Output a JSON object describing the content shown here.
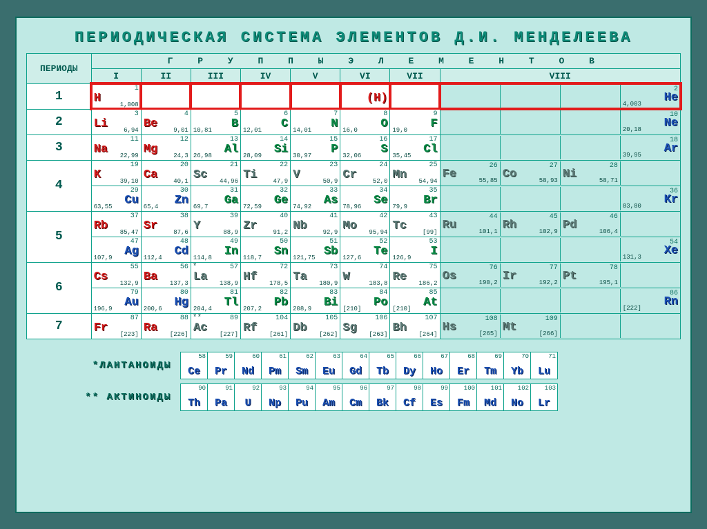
{
  "title": "ПЕРИОДИЧЕСКАЯ СИСТЕМА ЭЛЕМЕНТОВ Д.И. МЕНДЕЛЕЕВА",
  "labels": {
    "periods": "ПЕРИОДЫ",
    "groups": "Г Р У П П Ы    Э Л Е М Е Н Т О В",
    "lanth": "*ЛАНТАНОИДЫ",
    "act": "** АКТИНОИДЫ"
  },
  "group_headers": [
    "I",
    "II",
    "III",
    "IV",
    "V",
    "VI",
    "VII",
    "VIII"
  ],
  "colors": {
    "bg_outer": "#3a6e6e",
    "bg_card": "#bfe9e4",
    "border": "#0fa28c",
    "highlight": "#e21b1b",
    "red": "#d21b1b",
    "green": "#0a8a46",
    "blue": "#1a4fb3",
    "gray": "#5b7a76"
  },
  "highlight_period": 1,
  "periods": [
    {
      "n": "1",
      "rows": [
        {
          "cells": [
            {
              "sym": "H",
              "num": "1",
              "mass": "1,008",
              "color": "red",
              "side": "left"
            },
            null,
            null,
            null,
            null,
            {
              "sym": "(H)",
              "num": "",
              "mass": "",
              "color": "red",
              "side": "right"
            },
            null
          ],
          "g8": [
            null,
            null,
            null,
            {
              "sym": "He",
              "num": "2",
              "mass": "4,003",
              "color": "blue",
              "side": "right"
            }
          ],
          "hl": true
        }
      ]
    },
    {
      "n": "2",
      "rows": [
        {
          "cells": [
            {
              "sym": "Li",
              "num": "3",
              "mass": "6,94",
              "color": "red",
              "side": "left"
            },
            {
              "sym": "Be",
              "num": "4",
              "mass": "9,01",
              "color": "red",
              "side": "left"
            },
            {
              "sym": "B",
              "num": "5",
              "mass": "10,81",
              "color": "green",
              "side": "right"
            },
            {
              "sym": "C",
              "num": "6",
              "mass": "12,01",
              "color": "green",
              "side": "right"
            },
            {
              "sym": "N",
              "num": "7",
              "mass": "14,01",
              "color": "green",
              "side": "right"
            },
            {
              "sym": "O",
              "num": "8",
              "mass": "16,0",
              "color": "green",
              "side": "right"
            },
            {
              "sym": "F",
              "num": "9",
              "mass": "19,0",
              "color": "green",
              "side": "right"
            }
          ],
          "g8": [
            null,
            null,
            null,
            {
              "sym": "Ne",
              "num": "10",
              "mass": "20,18",
              "color": "blue",
              "side": "right"
            }
          ]
        }
      ]
    },
    {
      "n": "3",
      "rows": [
        {
          "cells": [
            {
              "sym": "Na",
              "num": "11",
              "mass": "22,99",
              "color": "red",
              "side": "left"
            },
            {
              "sym": "Mg",
              "num": "12",
              "mass": "24,3",
              "color": "red",
              "side": "left"
            },
            {
              "sym": "Al",
              "num": "13",
              "mass": "26,98",
              "color": "green",
              "side": "right"
            },
            {
              "sym": "Si",
              "num": "14",
              "mass": "28,09",
              "color": "green",
              "side": "right"
            },
            {
              "sym": "P",
              "num": "15",
              "mass": "30,97",
              "color": "green",
              "side": "right"
            },
            {
              "sym": "S",
              "num": "16",
              "mass": "32,06",
              "color": "green",
              "side": "right"
            },
            {
              "sym": "Cl",
              "num": "17",
              "mass": "35,45",
              "color": "green",
              "side": "right"
            }
          ],
          "g8": [
            null,
            null,
            null,
            {
              "sym": "Ar",
              "num": "18",
              "mass": "39,95",
              "color": "blue",
              "side": "right"
            }
          ]
        }
      ]
    },
    {
      "n": "4",
      "rows": [
        {
          "cells": [
            {
              "sym": "K",
              "num": "19",
              "mass": "39,10",
              "color": "red",
              "side": "left"
            },
            {
              "sym": "Ca",
              "num": "20",
              "mass": "40,1",
              "color": "red",
              "side": "left"
            },
            {
              "sym": "Sc",
              "num": "21",
              "mass": "44,96",
              "color": "gray",
              "side": "left"
            },
            {
              "sym": "Ti",
              "num": "22",
              "mass": "47,9",
              "color": "gray",
              "side": "left"
            },
            {
              "sym": "V",
              "num": "23",
              "mass": "50,9",
              "color": "gray",
              "side": "left"
            },
            {
              "sym": "Cr",
              "num": "24",
              "mass": "52,0",
              "color": "gray",
              "side": "left"
            },
            {
              "sym": "Mn",
              "num": "25",
              "mass": "54,94",
              "color": "gray",
              "side": "left"
            }
          ],
          "g8": [
            {
              "sym": "Fe",
              "num": "26",
              "mass": "55,85",
              "color": "gray",
              "side": "left"
            },
            {
              "sym": "Co",
              "num": "27",
              "mass": "58,93",
              "color": "gray",
              "side": "left"
            },
            {
              "sym": "Ni",
              "num": "28",
              "mass": "58,71",
              "color": "gray",
              "side": "left"
            },
            null
          ]
        },
        {
          "cells": [
            {
              "sym": "Cu",
              "num": "29",
              "mass": "63,55",
              "color": "blue",
              "side": "right"
            },
            {
              "sym": "Zn",
              "num": "30",
              "mass": "65,4",
              "color": "blue",
              "side": "right"
            },
            {
              "sym": "Ga",
              "num": "31",
              "mass": "69,7",
              "color": "green",
              "side": "right"
            },
            {
              "sym": "Ge",
              "num": "32",
              "mass": "72,59",
              "color": "green",
              "side": "right"
            },
            {
              "sym": "As",
              "num": "33",
              "mass": "74,92",
              "color": "green",
              "side": "right"
            },
            {
              "sym": "Se",
              "num": "34",
              "mass": "78,96",
              "color": "green",
              "side": "right"
            },
            {
              "sym": "Br",
              "num": "35",
              "mass": "79,9",
              "color": "green",
              "side": "right"
            }
          ],
          "g8": [
            null,
            null,
            null,
            {
              "sym": "Kr",
              "num": "36",
              "mass": "83,80",
              "color": "blue",
              "side": "right"
            }
          ]
        }
      ]
    },
    {
      "n": "5",
      "rows": [
        {
          "cells": [
            {
              "sym": "Rb",
              "num": "37",
              "mass": "85,47",
              "color": "red",
              "side": "left"
            },
            {
              "sym": "Sr",
              "num": "38",
              "mass": "87,6",
              "color": "red",
              "side": "left"
            },
            {
              "sym": "Y",
              "num": "39",
              "mass": "88,9",
              "color": "gray",
              "side": "left"
            },
            {
              "sym": "Zr",
              "num": "40",
              "mass": "91,2",
              "color": "gray",
              "side": "left"
            },
            {
              "sym": "Nb",
              "num": "41",
              "mass": "92,9",
              "color": "gray",
              "side": "left"
            },
            {
              "sym": "Mo",
              "num": "42",
              "mass": "95,94",
              "color": "gray",
              "side": "left"
            },
            {
              "sym": "Tc",
              "num": "43",
              "mass": "[99]",
              "color": "gray",
              "side": "left"
            }
          ],
          "g8": [
            {
              "sym": "Ru",
              "num": "44",
              "mass": "101,1",
              "color": "gray",
              "side": "left"
            },
            {
              "sym": "Rh",
              "num": "45",
              "mass": "102,9",
              "color": "gray",
              "side": "left"
            },
            {
              "sym": "Pd",
              "num": "46",
              "mass": "106,4",
              "color": "gray",
              "side": "left"
            },
            null
          ]
        },
        {
          "cells": [
            {
              "sym": "Ag",
              "num": "47",
              "mass": "107,9",
              "color": "blue",
              "side": "right"
            },
            {
              "sym": "Cd",
              "num": "48",
              "mass": "112,4",
              "color": "blue",
              "side": "right"
            },
            {
              "sym": "In",
              "num": "49",
              "mass": "114,8",
              "color": "green",
              "side": "right"
            },
            {
              "sym": "Sn",
              "num": "50",
              "mass": "118,7",
              "color": "green",
              "side": "right"
            },
            {
              "sym": "Sb",
              "num": "51",
              "mass": "121,75",
              "color": "green",
              "side": "right"
            },
            {
              "sym": "Te",
              "num": "52",
              "mass": "127,6",
              "color": "green",
              "side": "right"
            },
            {
              "sym": "I",
              "num": "53",
              "mass": "126,9",
              "color": "green",
              "side": "right"
            }
          ],
          "g8": [
            null,
            null,
            null,
            {
              "sym": "Xe",
              "num": "54",
              "mass": "131,3",
              "color": "blue",
              "side": "right"
            }
          ]
        }
      ]
    },
    {
      "n": "6",
      "rows": [
        {
          "cells": [
            {
              "sym": "Cs",
              "num": "55",
              "mass": "132,9",
              "color": "red",
              "side": "left"
            },
            {
              "sym": "Ba",
              "num": "56",
              "mass": "137,3",
              "color": "red",
              "side": "left"
            },
            {
              "sym": "La",
              "num": "57",
              "mass": "138,9",
              "color": "gray",
              "side": "left",
              "prefix": "*"
            },
            {
              "sym": "Hf",
              "num": "72",
              "mass": "178,5",
              "color": "gray",
              "side": "left"
            },
            {
              "sym": "Ta",
              "num": "73",
              "mass": "180,9",
              "color": "gray",
              "side": "left"
            },
            {
              "sym": "W",
              "num": "74",
              "mass": "183,8",
              "color": "gray",
              "side": "left"
            },
            {
              "sym": "Re",
              "num": "75",
              "mass": "186,2",
              "color": "gray",
              "side": "left"
            }
          ],
          "g8": [
            {
              "sym": "Os",
              "num": "76",
              "mass": "190,2",
              "color": "gray",
              "side": "left"
            },
            {
              "sym": "Ir",
              "num": "77",
              "mass": "192,2",
              "color": "gray",
              "side": "left"
            },
            {
              "sym": "Pt",
              "num": "78",
              "mass": "195,1",
              "color": "gray",
              "side": "left"
            },
            null
          ]
        },
        {
          "cells": [
            {
              "sym": "Au",
              "num": "79",
              "mass": "196,9",
              "color": "blue",
              "side": "right"
            },
            {
              "sym": "Hg",
              "num": "80",
              "mass": "200,6",
              "color": "blue",
              "side": "right"
            },
            {
              "sym": "Tl",
              "num": "81",
              "mass": "204,4",
              "color": "green",
              "side": "right"
            },
            {
              "sym": "Pb",
              "num": "82",
              "mass": "207,2",
              "color": "green",
              "side": "right"
            },
            {
              "sym": "Bi",
              "num": "83",
              "mass": "208,9",
              "color": "green",
              "side": "right"
            },
            {
              "sym": "Po",
              "num": "84",
              "mass": "[210]",
              "color": "green",
              "side": "right"
            },
            {
              "sym": "At",
              "num": "85",
              "mass": "[210]",
              "color": "green",
              "side": "right"
            }
          ],
          "g8": [
            null,
            null,
            null,
            {
              "sym": "Rn",
              "num": "86",
              "mass": "[222]",
              "color": "blue",
              "side": "right"
            }
          ]
        }
      ]
    },
    {
      "n": "7",
      "rows": [
        {
          "cells": [
            {
              "sym": "Fr",
              "num": "87",
              "mass": "[223]",
              "color": "red",
              "side": "left"
            },
            {
              "sym": "Ra",
              "num": "88",
              "mass": "[226]",
              "color": "red",
              "side": "left"
            },
            {
              "sym": "Ac",
              "num": "89",
              "mass": "[227]",
              "color": "gray",
              "side": "left",
              "prefix": "**"
            },
            {
              "sym": "Rf",
              "num": "104",
              "mass": "[261]",
              "color": "gray",
              "side": "left"
            },
            {
              "sym": "Db",
              "num": "105",
              "mass": "[262]",
              "color": "gray",
              "side": "left"
            },
            {
              "sym": "Sg",
              "num": "106",
              "mass": "[263]",
              "color": "gray",
              "side": "left"
            },
            {
              "sym": "Bh",
              "num": "107",
              "mass": "[264]",
              "color": "gray",
              "side": "left"
            }
          ],
          "g8": [
            {
              "sym": "Hs",
              "num": "108",
              "mass": "[265]",
              "color": "gray",
              "side": "left"
            },
            {
              "sym": "Mt",
              "num": "109",
              "mass": "[266]",
              "color": "gray",
              "side": "left"
            },
            null,
            null
          ]
        }
      ]
    }
  ],
  "lanth": [
    {
      "sym": "Ce",
      "num": "58"
    },
    {
      "sym": "Pr",
      "num": "59"
    },
    {
      "sym": "Nd",
      "num": "60"
    },
    {
      "sym": "Pm",
      "num": "61"
    },
    {
      "sym": "Sm",
      "num": "62"
    },
    {
      "sym": "Eu",
      "num": "63"
    },
    {
      "sym": "Gd",
      "num": "64"
    },
    {
      "sym": "Tb",
      "num": "65"
    },
    {
      "sym": "Dy",
      "num": "66"
    },
    {
      "sym": "Ho",
      "num": "67"
    },
    {
      "sym": "Er",
      "num": "68"
    },
    {
      "sym": "Tm",
      "num": "69"
    },
    {
      "sym": "Yb",
      "num": "70"
    },
    {
      "sym": "Lu",
      "num": "71"
    }
  ],
  "act": [
    {
      "sym": "Th",
      "num": "90"
    },
    {
      "sym": "Pa",
      "num": "91"
    },
    {
      "sym": "U",
      "num": "92"
    },
    {
      "sym": "Np",
      "num": "93"
    },
    {
      "sym": "Pu",
      "num": "94"
    },
    {
      "sym": "Am",
      "num": "95"
    },
    {
      "sym": "Cm",
      "num": "96"
    },
    {
      "sym": "Bk",
      "num": "97"
    },
    {
      "sym": "Cf",
      "num": "98"
    },
    {
      "sym": "Es",
      "num": "99"
    },
    {
      "sym": "Fm",
      "num": "100"
    },
    {
      "sym": "Md",
      "num": "101"
    },
    {
      "sym": "No",
      "num": "102"
    },
    {
      "sym": "Lr",
      "num": "103"
    }
  ]
}
